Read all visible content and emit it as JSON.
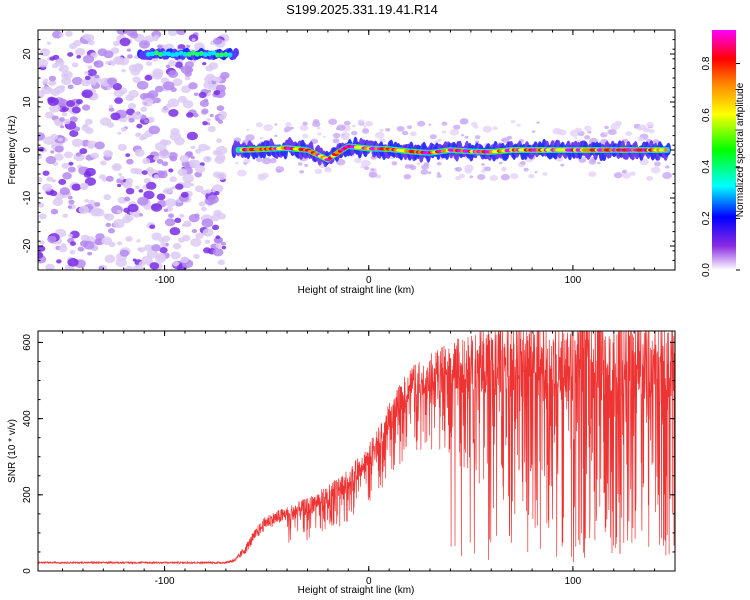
{
  "title": "S199.2025.331.19.41.R14",
  "chart_data": [
    {
      "type": "heatmap",
      "name": "spectrogram",
      "xlabel": "Height of straight line (km)",
      "ylabel": "Frequency (Hz)",
      "xlim": [
        -162,
        150
      ],
      "ylim": [
        -25,
        25
      ],
      "xticks": [
        -100,
        0,
        100
      ],
      "yticks": [
        -20,
        -10,
        0,
        10,
        20
      ],
      "colorbar": {
        "label": "Normalized spectral amplitude",
        "range": [
          0,
          0.93
        ],
        "ticks": [
          0.0,
          0.2,
          0.4,
          0.6,
          0.8
        ],
        "colormap": [
          "#ffffff",
          "#8a2be2",
          "#0000ff",
          "#00ffff",
          "#00ff00",
          "#ffff00",
          "#ff8c00",
          "#ff0000",
          "#ff00ff"
        ]
      },
      "features": {
        "noise_region_x": [
          -162,
          -70
        ],
        "carrier_segment_upper": {
          "x": [
            -112,
            -65
          ],
          "freq": 20
        },
        "carrier_main": {
          "x": [
            -65,
            -50,
            -40,
            -30,
            -25,
            -20,
            -15,
            -10,
            0,
            10,
            20,
            30,
            40,
            50,
            60,
            70,
            80,
            90,
            100,
            110,
            120,
            130,
            140,
            147
          ],
          "freq": [
            0,
            0.2,
            0.4,
            0,
            -1,
            -2,
            -0.5,
            0.8,
            0.3,
            0.2,
            -0.3,
            -0.6,
            0,
            -0.3,
            -0.4,
            0,
            0,
            0,
            0,
            0,
            0,
            0,
            0,
            0
          ]
        }
      }
    },
    {
      "type": "line",
      "name": "snr",
      "xlabel": "Height of straight line (km)",
      "ylabel": "SNR (10 * v/v)",
      "xlim": [
        -162,
        150
      ],
      "ylim": [
        0,
        630
      ],
      "xticks": [
        -100,
        0,
        100
      ],
      "yticks": [
        0,
        200,
        400,
        600
      ],
      "color": "#ee3333",
      "envelope": {
        "x": [
          -162,
          -70,
          -65,
          -60,
          -55,
          -50,
          -40,
          -30,
          -20,
          -10,
          0,
          10,
          20,
          30,
          40,
          50,
          60,
          80,
          100,
          120,
          150
        ],
        "mean": [
          22,
          22,
          30,
          60,
          100,
          130,
          150,
          170,
          200,
          240,
          300,
          400,
          490,
          520,
          540,
          550,
          560,
          565,
          565,
          568,
          570
        ],
        "amplitude": [
          8,
          10,
          25,
          50,
          60,
          70,
          80,
          90,
          100,
          110,
          130,
          160,
          180,
          200,
          250,
          300,
          400,
          450,
          480,
          500,
          520
        ]
      }
    }
  ]
}
